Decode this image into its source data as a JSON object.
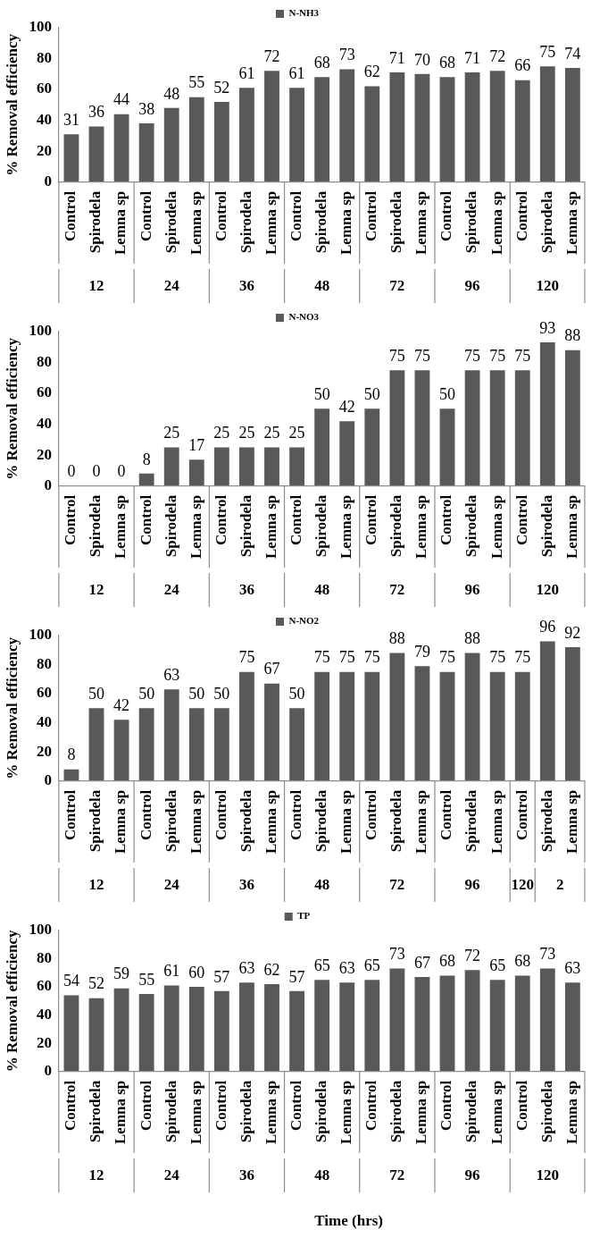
{
  "chart_data": [
    {
      "type": "bar",
      "ylabel": "% Removal efficiency",
      "categories": [
        "Control",
        "Spirodela",
        "Lemna sp",
        "Control",
        "Spirodela",
        "Lemna sp",
        "Control",
        "Spirodela",
        "Lemna sp",
        "Control",
        "Spirodela",
        "Lemna sp",
        "Control",
        "Spirodela",
        "Lemna sp",
        "Control",
        "Spirodela",
        "Lemna sp",
        "Control",
        "Spirodela",
        "Lemna sp"
      ],
      "series": [
        {
          "name": "N-NH3",
          "color": "#595959",
          "values": [
            31,
            36,
            44,
            38,
            48,
            55,
            52,
            61,
            72,
            61,
            68,
            73,
            62,
            71,
            70,
            68,
            71,
            72,
            66,
            75,
            74
          ]
        }
      ],
      "annotations": [
        "12",
        "24",
        "36",
        "48",
        "72",
        "96",
        "120"
      ],
      "ylim": [
        0,
        100
      ],
      "yticks": [
        0,
        20,
        40,
        60,
        80,
        100
      ],
      "grid": false,
      "legend": "top",
      "data_labels": true
    },
    {
      "type": "bar",
      "ylabel": "% Removal efficiency",
      "categories": [
        "Control",
        "Spirodela",
        "Lemna sp",
        "Control",
        "Spirodela",
        "Lemna sp",
        "Control",
        "Spirodela",
        "Lemna sp",
        "Control",
        "Spirodela",
        "Lemna sp",
        "Control",
        "Spirodela",
        "Lemna sp",
        "Control",
        "Spirodela",
        "Lemna sp",
        "Control",
        "Spirodela",
        "Lemna sp"
      ],
      "series": [
        {
          "name": "N-NO3",
          "color": "#595959",
          "values": [
            0,
            0,
            0,
            8,
            25,
            17,
            25,
            25,
            25,
            25,
            50,
            42,
            50,
            75,
            75,
            50,
            75,
            75,
            75,
            93,
            88
          ]
        }
      ],
      "annotations": [
        "12",
        "24",
        "36",
        "48",
        "72",
        "96",
        "120"
      ],
      "ylim": [
        0,
        100
      ],
      "yticks": [
        0,
        20,
        40,
        60,
        80,
        100
      ],
      "grid": false,
      "legend": "top",
      "data_labels": true
    },
    {
      "type": "bar",
      "ylabel": "% Removal efficiency",
      "categories": [
        "Control",
        "Spirodela",
        "Lemna sp",
        "Control",
        "Spirodela",
        "Lemna sp",
        "Control",
        "Spirodela",
        "Lemna sp",
        "Control",
        "Spirodela",
        "Lemna sp",
        "Control",
        "Spirodela",
        "Lemna sp",
        "Control",
        "Spirodela",
        "Lemna sp",
        "Control",
        "Spirodela",
        "Lemna sp"
      ],
      "series": [
        {
          "name": "N-NO2",
          "color": "#595959",
          "values": [
            8,
            50,
            42,
            50,
            63,
            50,
            50,
            75,
            67,
            50,
            75,
            75,
            75,
            88,
            79,
            75,
            88,
            75,
            75,
            96,
            92
          ]
        }
      ],
      "annotations": [
        "12",
        "24",
        "36",
        "48",
        "72",
        "96",
        "120",
        "2"
      ],
      "ylim": [
        0,
        100
      ],
      "yticks": [
        0,
        20,
        40,
        60,
        80,
        100
      ],
      "grid": false,
      "legend": "top",
      "data_labels": true
    },
    {
      "type": "bar",
      "ylabel": "% Removal efficiency",
      "xlabel": "Time (hrs)",
      "categories": [
        "Control",
        "Spirodela",
        "Lemna sp",
        "Control",
        "Spirodela",
        "Lemna sp",
        "Control",
        "Spirodela",
        "Lemna sp",
        "Control",
        "Spirodela",
        "Lemna sp",
        "Control",
        "Spirodela",
        "Lemna sp",
        "Control",
        "Spirodela",
        "Lemna sp",
        "Control",
        "Spirodela",
        "Lemna sp"
      ],
      "series": [
        {
          "name": "TP",
          "color": "#595959",
          "values": [
            54,
            52,
            59,
            55,
            61,
            60,
            57,
            63,
            62,
            57,
            65,
            63,
            65,
            73,
            67,
            68,
            72,
            65,
            68,
            73,
            63
          ]
        }
      ],
      "annotations": [
        "12",
        "24",
        "36",
        "48",
        "72",
        "96",
        "120"
      ],
      "ylim": [
        0,
        100
      ],
      "yticks": [
        0,
        20,
        40,
        60,
        80,
        100
      ],
      "grid": false,
      "legend": "top",
      "data_labels": true
    }
  ]
}
